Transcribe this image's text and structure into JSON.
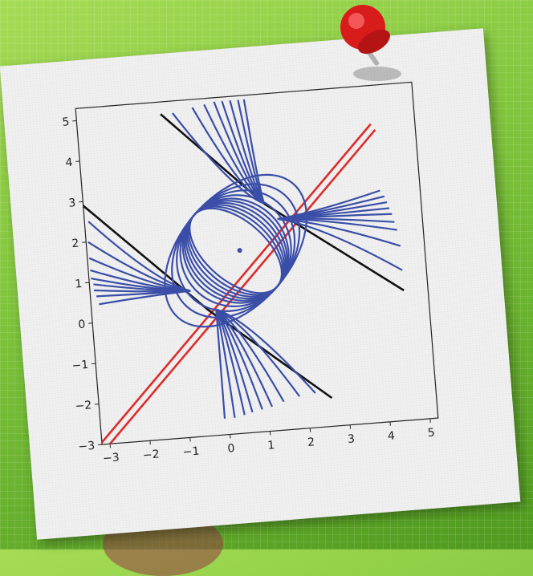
{
  "chart_data": {
    "type": "line",
    "title": "",
    "xlabel": "",
    "ylabel": "",
    "xlim": [
      -3.2,
      5.2
    ],
    "ylim": [
      -3.0,
      5.3
    ],
    "x_ticks": [
      -3,
      -2,
      -1,
      0,
      1,
      2,
      3,
      4,
      5
    ],
    "y_ticks": [
      -3,
      -2,
      -1,
      0,
      1,
      2,
      3,
      4,
      5
    ],
    "x_tick_labels": [
      "−3",
      "−2",
      "−1",
      "0",
      "1",
      "2",
      "3",
      "4",
      "5"
    ],
    "y_tick_labels": [
      "−3",
      "−2",
      "−1",
      "0",
      "1",
      "2",
      "3",
      "4",
      "5"
    ],
    "grid": false,
    "series": [
      {
        "role": "diagonal",
        "color": "#dd2b2b",
        "points": [
          [
            -3.2,
            -3.2
          ],
          [
            4.2,
            4.2
          ]
        ]
      },
      {
        "role": "diagonal",
        "color": "#dd2b2b",
        "points": [
          [
            -3.2,
            -2.95
          ],
          [
            4.1,
            4.35
          ]
        ]
      },
      {
        "role": "line",
        "color": "#111111",
        "points": [
          [
            -3.2,
            2.9
          ],
          [
            -0.3,
            0.1
          ],
          [
            2.6,
            -2.3
          ]
        ]
      },
      {
        "role": "line",
        "color": "#111111",
        "points": [
          [
            -1.1,
            5.0
          ],
          [
            1.3,
            2.6
          ],
          [
            4.6,
            0.2
          ]
        ]
      },
      {
        "role": "closed-curves",
        "color": "#3a4ea8",
        "center": [
          0.5,
          1.5
        ],
        "rx": [
          0.75,
          0.85,
          0.95,
          1.05,
          1.15,
          1.25,
          1.4,
          1.6,
          1.85,
          2.2
        ],
        "ry": 1.35,
        "tilt_deg": -45
      },
      {
        "role": "fan",
        "color": "#3a4ea8",
        "from": [
          1.3,
          2.6
        ],
        "to": [
          [
            -0.8,
            5.0
          ],
          [
            -0.3,
            5.1
          ],
          [
            0.0,
            5.15
          ],
          [
            0.25,
            5.2
          ],
          [
            0.45,
            5.2
          ],
          [
            0.65,
            5.2
          ],
          [
            0.85,
            5.2
          ],
          [
            1.0,
            5.2
          ]
        ]
      },
      {
        "role": "fan",
        "color": "#3a4ea8",
        "from": [
          1.6,
          2.2
        ],
        "to": [
          [
            4.2,
            2.7
          ],
          [
            4.3,
            2.55
          ],
          [
            4.35,
            2.4
          ],
          [
            4.4,
            2.25
          ],
          [
            4.45,
            2.1
          ],
          [
            4.5,
            1.9
          ],
          [
            4.55,
            1.7
          ],
          [
            4.6,
            1.3
          ],
          [
            4.6,
            0.7
          ]
        ]
      },
      {
        "role": "fan",
        "color": "#3a4ea8",
        "from": [
          -0.7,
          0.6
        ],
        "to": [
          [
            -3.1,
            2.5
          ],
          [
            -3.15,
            2.0
          ],
          [
            -3.15,
            1.6
          ],
          [
            -3.15,
            1.3
          ],
          [
            -3.15,
            1.1
          ],
          [
            -3.1,
            0.95
          ],
          [
            -3.1,
            0.8
          ],
          [
            -3.05,
            0.65
          ],
          [
            -3.0,
            0.45
          ]
        ]
      },
      {
        "role": "fan",
        "color": "#3a4ea8",
        "from": [
          -0.1,
          0.1
        ],
        "to": [
          [
            -0.1,
            -2.6
          ],
          [
            0.15,
            -2.6
          ],
          [
            0.4,
            -2.55
          ],
          [
            0.6,
            -2.5
          ],
          [
            0.85,
            -2.45
          ],
          [
            1.1,
            -2.4
          ],
          [
            1.4,
            -2.3
          ],
          [
            1.8,
            -2.2
          ],
          [
            2.2,
            -2.15
          ]
        ]
      },
      {
        "role": "point",
        "color": "#3a4ea8",
        "points": [
          [
            0.6,
            1.5
          ]
        ]
      }
    ]
  }
}
